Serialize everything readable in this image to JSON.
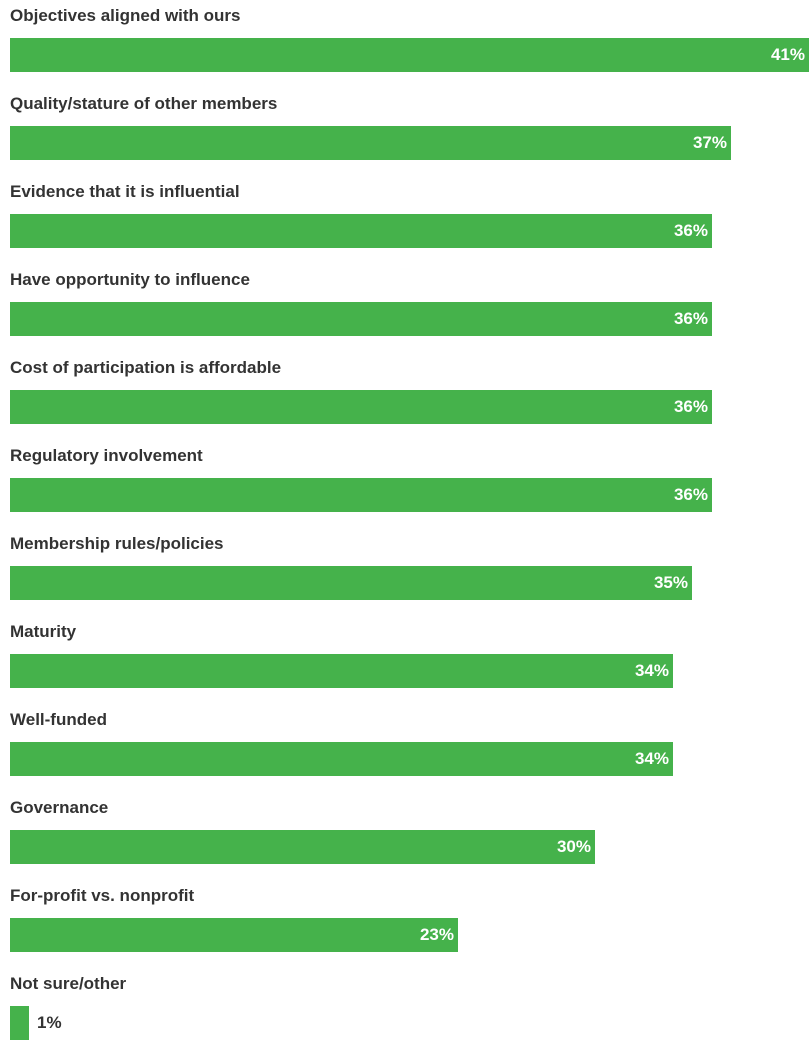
{
  "chart_data": {
    "type": "bar",
    "orientation": "horizontal",
    "categories": [
      "Objectives aligned with ours",
      "Quality/stature of other members",
      "Evidence that it is influential",
      "Have opportunity to influence",
      "Cost of participation is affordable",
      "Regulatory involvement",
      "Membership rules/policies",
      "Maturity",
      "Well-funded",
      "Governance",
      "For-profit vs. nonprofit",
      "Not sure/other"
    ],
    "values": [
      41,
      37,
      36,
      36,
      36,
      36,
      35,
      34,
      34,
      30,
      23,
      1
    ],
    "value_labels": [
      "41%",
      "37%",
      "36%",
      "36%",
      "36%",
      "36%",
      "35%",
      "34%",
      "34%",
      "30%",
      "23%",
      "1%"
    ],
    "xlim": [
      0,
      41
    ],
    "bar_color": "#45b24b",
    "grid": false,
    "legend": "none"
  }
}
